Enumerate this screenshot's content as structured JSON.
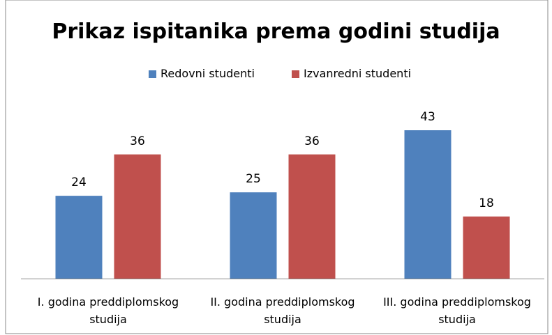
{
  "chart_data": {
    "type": "bar",
    "title": "Prikaz ispitanika prema godini studija",
    "categories": [
      "I. godina preddiplomskog studija",
      "II. godina preddiplomskog studija",
      "III. godina preddiplomskog studija"
    ],
    "series": [
      {
        "name": "Redovni studenti",
        "color": "#4f81bd",
        "values": [
          24,
          25,
          43
        ]
      },
      {
        "name": "Izvanredni studenti",
        "color": "#c0504d",
        "values": [
          36,
          36,
          18
        ]
      }
    ],
    "legend": "top"
  }
}
